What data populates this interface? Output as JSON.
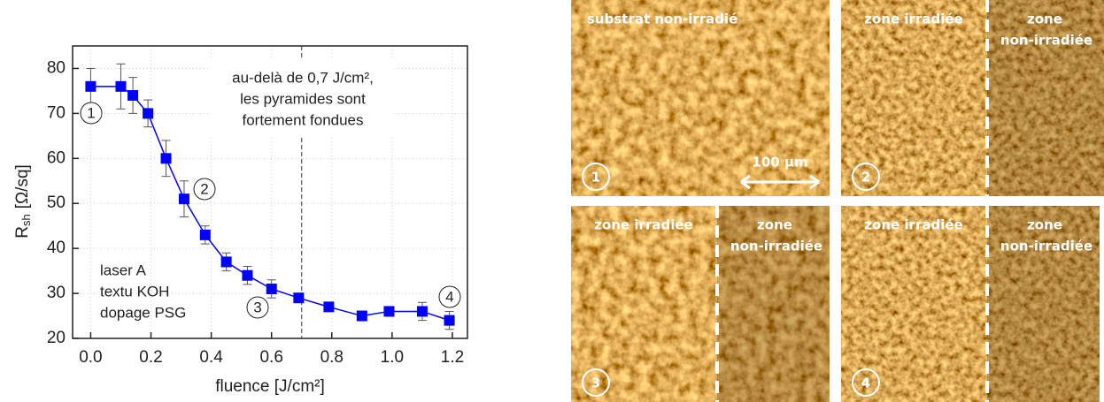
{
  "chart_data": {
    "type": "line",
    "x_label": "fluence [J/cm²]",
    "y_label": "R",
    "y_label_sub": "sh",
    "y_label_unit": "[Ω/sq]",
    "x": [
      0.0,
      0.1,
      0.14,
      0.19,
      0.25,
      0.31,
      0.38,
      0.45,
      0.52,
      0.6,
      0.69,
      0.79,
      0.9,
      0.99,
      1.1,
      1.19
    ],
    "series": [
      {
        "name": "laser A",
        "color": "#0000ff",
        "values": [
          76,
          76,
          74,
          70,
          60,
          51,
          43,
          37,
          34,
          31,
          29,
          27,
          25,
          26,
          26,
          24
        ],
        "errors": [
          4,
          5,
          4,
          3,
          4,
          4,
          2,
          2,
          2,
          2,
          1,
          1,
          1,
          1,
          2,
          2
        ]
      }
    ],
    "xlim": [
      -0.06,
      1.25
    ],
    "ylim": [
      20,
      85
    ],
    "xticks": [
      {
        "value": 0.0,
        "label": "0.0"
      },
      0.2,
      0.4,
      0.6,
      0.8,
      {
        "value": 1.0,
        "label": "1.0"
      },
      1.2
    ],
    "yticks": [
      20,
      30,
      40,
      50,
      60,
      70,
      80
    ],
    "grid": true,
    "threshold_x": 0.7,
    "annotation": [
      "au-delà de 0,7 J/cm²,",
      "les pyramides sont",
      "fortement fondues"
    ],
    "legend_text": [
      "laser A",
      "textu KOH",
      "dopage PSG"
    ],
    "point_labels": [
      "1",
      "2",
      "3",
      "4"
    ]
  },
  "images": [
    {
      "number": "1",
      "labels": [
        "substrat non-irradié"
      ],
      "scale_bar": "100 µm"
    },
    {
      "number": "2",
      "labels": [
        "zone irradiée",
        "zone",
        "non-irradiée"
      ]
    },
    {
      "number": "3",
      "labels": [
        "zone irradiée",
        "zone",
        "non-irradiée"
      ]
    },
    {
      "number": "4",
      "labels": [
        "zone irradiée",
        "zone",
        "non-irradiée"
      ]
    }
  ]
}
